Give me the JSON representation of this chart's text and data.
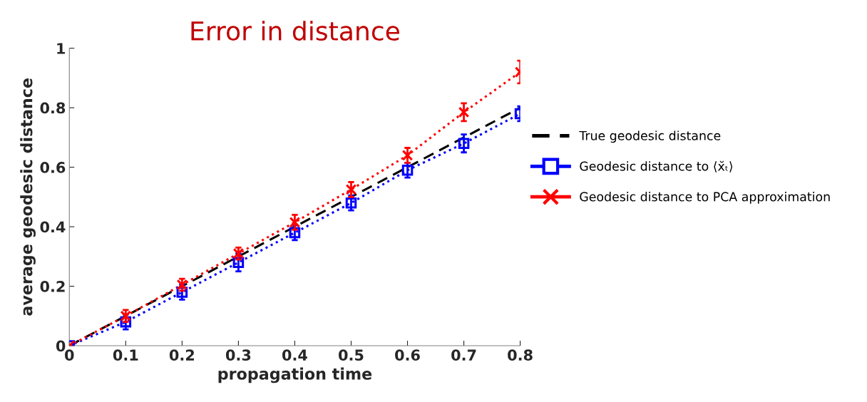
{
  "chart_data": {
    "type": "line",
    "title": "Error in distance",
    "xlabel": "propagation time",
    "ylabel": "average geodesic distance",
    "x": [
      0,
      0.1,
      0.2,
      0.3,
      0.4,
      0.5,
      0.6,
      0.7,
      0.8
    ],
    "xlim": [
      0,
      0.8
    ],
    "xticks": [
      0,
      0.1,
      0.2,
      0.3,
      0.4,
      0.5,
      0.6,
      0.7,
      0.8
    ],
    "ylim": [
      0,
      1
    ],
    "yticks": [
      0,
      0.2,
      0.4,
      0.6,
      0.8,
      1
    ],
    "grid": false,
    "legend": "right",
    "series": [
      {
        "name": "True geodesic distance",
        "color": "#000000",
        "line_style": "dashed",
        "marker": "none",
        "values": [
          0,
          0.1,
          0.2,
          0.3,
          0.4,
          0.5,
          0.6,
          0.7,
          0.8
        ]
      },
      {
        "name": "Geodesic distance to ⟨x̆ₜ⟩",
        "color": "#0000ff",
        "line_style": "dotted",
        "marker": "square",
        "values": [
          0,
          0.08,
          0.18,
          0.28,
          0.38,
          0.48,
          0.59,
          0.68,
          0.78
        ],
        "errors": [
          0,
          0.025,
          0.025,
          0.03,
          0.025,
          0.025,
          0.025,
          0.03,
          0.025
        ]
      },
      {
        "name": "Geodesic distance to PCA approximation",
        "color": "#ff0000",
        "line_style": "dotted",
        "marker": "cross",
        "values": [
          0,
          0.1,
          0.205,
          0.31,
          0.415,
          0.525,
          0.64,
          0.785,
          0.92
        ],
        "errors": [
          0,
          0.02,
          0.02,
          0.02,
          0.025,
          0.025,
          0.025,
          0.03,
          0.038
        ]
      }
    ]
  }
}
